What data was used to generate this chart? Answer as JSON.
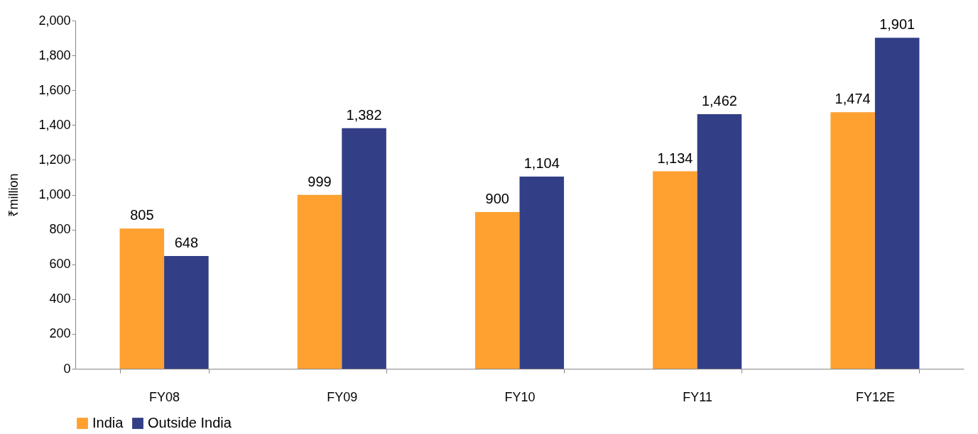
{
  "chart_data": {
    "type": "bar",
    "ylabel": "₹million",
    "categories": [
      "FY08",
      "FY09",
      "FY10",
      "FY11",
      "FY12E"
    ],
    "series": [
      {
        "name": "India",
        "color": "#ffa131",
        "values": [
          805,
          999,
          900,
          1134,
          1474
        ],
        "value_labels": [
          "805",
          "999",
          "900",
          "1,134",
          "1,474"
        ]
      },
      {
        "name": "Outside India",
        "color": "#323f86",
        "values": [
          648,
          1382,
          1104,
          1462,
          1901
        ],
        "value_labels": [
          "648",
          "1,382",
          "1,104",
          "1,462",
          "1,901"
        ]
      }
    ],
    "ylim": [
      0,
      2000
    ],
    "yticks": [
      0,
      200,
      400,
      600,
      800,
      {
        "value": 1000,
        "label": "1,000"
      },
      {
        "value": 1200,
        "label": "1,200"
      },
      {
        "value": 1400,
        "label": "1,400"
      },
      {
        "value": 1600,
        "label": "1,600"
      },
      {
        "value": 1800,
        "label": "1,800"
      },
      {
        "value": 2000,
        "label": "2,000"
      }
    ],
    "grid": false,
    "legend": "bottom"
  }
}
